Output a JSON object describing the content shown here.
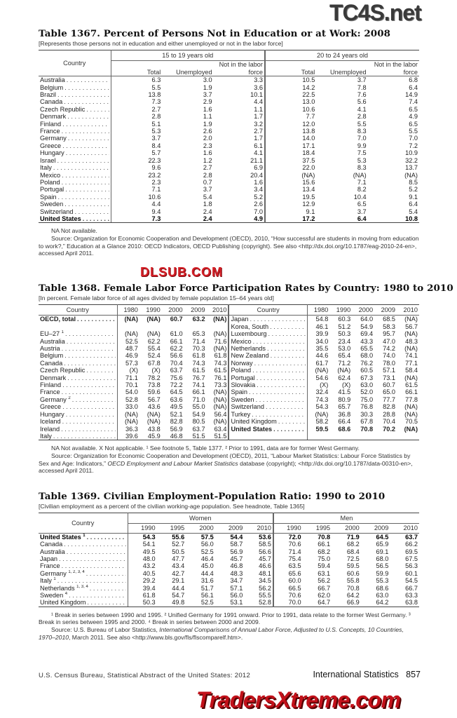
{
  "watermarks": {
    "top": "TC4S.net",
    "middle": "DLSUB.COM",
    "bottom": "TradersXtreme.com"
  },
  "t1367": {
    "title": "Table 1367. Percent of Persons Not in Education or at Work: 2008",
    "headnote": "[Represents those persons not in education and either unemployed or not in the labor force]",
    "col_country": "Country",
    "group1": "15 to 19 years old",
    "group2": "20 to 24 years old",
    "cols": [
      "Total",
      "Unemployed",
      "Not in the labor force",
      "Total",
      "Unemployed",
      "Not in the labor force"
    ],
    "rows": [
      {
        "country": "Australia",
        "v": [
          "6.3",
          "3.0",
          "3.3",
          "10.5",
          "3.7",
          "6.8"
        ]
      },
      {
        "country": "Belgium",
        "v": [
          "5.5",
          "1.9",
          "3.6",
          "14.2",
          "7.8",
          "6.4"
        ]
      },
      {
        "country": "Brazil",
        "v": [
          "13.8",
          "3.7",
          "10.1",
          "22.5",
          "7.6",
          "14.9"
        ]
      },
      {
        "country": "Canada",
        "v": [
          "7.3",
          "2.9",
          "4.4",
          "13.0",
          "5.6",
          "7.4"
        ]
      },
      {
        "country": "Czech Republic",
        "v": [
          "2.7",
          "1.6",
          "1.1",
          "10.6",
          "4.1",
          "6.5"
        ]
      },
      {
        "country": "Denmark",
        "v": [
          "2.8",
          "1.1",
          "1.7",
          "7.7",
          "2.8",
          "4.9"
        ]
      },
      {
        "country": "Finland",
        "v": [
          "5.1",
          "1.9",
          "3.2",
          "12.0",
          "5.5",
          "6.5"
        ]
      },
      {
        "country": "France",
        "v": [
          "5.3",
          "2.6",
          "2.7",
          "13.8",
          "8.3",
          "5.5"
        ]
      },
      {
        "country": "Germany",
        "v": [
          "3.7",
          "2.0",
          "1.7",
          "14.0",
          "7.0",
          "7.0"
        ]
      },
      {
        "country": "Greece",
        "v": [
          "8.4",
          "2.3",
          "6.1",
          "17.1",
          "9.9",
          "7.2"
        ]
      },
      {
        "country": "Hungary",
        "v": [
          "5.7",
          "1.6",
          "4.1",
          "18.4",
          "7.5",
          "10.9"
        ]
      },
      {
        "country": "Israel",
        "v": [
          "22.3",
          "1.2",
          "21.1",
          "37.5",
          "5.3",
          "32.2"
        ]
      },
      {
        "country": "Italy",
        "v": [
          "9.6",
          "2.7",
          "6.9",
          "22.0",
          "8.3",
          "13.7"
        ]
      },
      {
        "country": "Mexico",
        "v": [
          "23.2",
          "2.8",
          "20.4",
          "(NA)",
          "(NA)",
          "(NA)"
        ]
      },
      {
        "country": "Poland",
        "v": [
          "2.3",
          "0.7",
          "1.6",
          "15.6",
          "7.1",
          "8.5"
        ]
      },
      {
        "country": "Portugal",
        "v": [
          "7.1",
          "3.7",
          "3.4",
          "13.4",
          "8.2",
          "5.2"
        ]
      },
      {
        "country": "Spain",
        "v": [
          "10.6",
          "5.4",
          "5.2",
          "19.5",
          "10.4",
          "9.1"
        ]
      },
      {
        "country": "Sweden",
        "v": [
          "4.4",
          "1.8",
          "2.6",
          "12.9",
          "6.5",
          "6.4"
        ]
      },
      {
        "country": "Switzerland",
        "v": [
          "9.4",
          "2.4",
          "7.0",
          "9.1",
          "3.7",
          "5.4"
        ]
      },
      {
        "country": "United States",
        "bold": true,
        "v": [
          "7.3",
          "2.4",
          "4.9",
          "17.2",
          "6.4",
          "10.8"
        ]
      }
    ],
    "notes": [
      "NA Not available.",
      "Source: Organization for Economic Cooperation and Development (OECD), 2010, “How successful are students in moving from education to work?,” Education at a Glance 2010: OECD Indicators, OECD Publishing (copyright). See also <http://dx.doi.org/10.1787/eag-2010-24-en>, accessed April 2011."
    ]
  },
  "t1368": {
    "title": "Table 1368. Female Labor Force Participation Rates by Country: 1980 to 2010",
    "headnote": "[In percent. Female labor force of all ages divided by female population 15–64 years old]",
    "col_country": "Country",
    "years": [
      "1980",
      "1990",
      "2000",
      "2009",
      "2010"
    ],
    "left": [
      {
        "country": "OECD, total",
        "bold": true,
        "v": [
          "(NA)",
          "(NA)",
          "60.7",
          "63.2",
          "(NA)"
        ]
      },
      {
        "country": "",
        "v": [
          "",
          "",
          "",
          "",
          ""
        ]
      },
      {
        "country": "EU–27",
        "sup": "1",
        "v": [
          "(NA)",
          "(NA)",
          "61.0",
          "65.3",
          "(NA)"
        ]
      },
      {
        "country": "Australia",
        "v": [
          "52.5",
          "62.2",
          "66.1",
          "71.4",
          "71.6"
        ]
      },
      {
        "country": "Austria",
        "v": [
          "48.7",
          "55.4",
          "62.2",
          "70.3",
          "(NA)"
        ]
      },
      {
        "country": "Belgium",
        "v": [
          "46.9",
          "52.4",
          "56.6",
          "61.8",
          "61.8"
        ]
      },
      {
        "country": "Canada",
        "v": [
          "57.3",
          "67.8",
          "70.4",
          "74.3",
          "74.3"
        ]
      },
      {
        "country": "Czech Republic",
        "v": [
          "(X)",
          "(X)",
          "63.7",
          "61.5",
          "61.5"
        ]
      },
      {
        "country": "Denmark",
        "v": [
          "71.1",
          "78.2",
          "75.6",
          "76.7",
          "76.1"
        ]
      },
      {
        "country": "Finland",
        "v": [
          "70.1",
          "73.8",
          "72.2",
          "74.1",
          "73.3"
        ]
      },
      {
        "country": "France",
        "v": [
          "54.0",
          "59.6",
          "64.5",
          "66.1",
          "(NA)"
        ]
      },
      {
        "country": "Germany",
        "sup": "2",
        "v": [
          "52.8",
          "56.7",
          "63.6",
          "71.0",
          "(NA)"
        ]
      },
      {
        "country": "Greece",
        "v": [
          "33.0",
          "43.6",
          "49.5",
          "55.0",
          "(NA)"
        ]
      },
      {
        "country": "Hungary",
        "v": [
          "(NA)",
          "(NA)",
          "52.1",
          "54.9",
          "56.4"
        ]
      },
      {
        "country": "Iceland",
        "v": [
          "(NA)",
          "(NA)",
          "82.8",
          "80.5",
          "(NA)"
        ]
      },
      {
        "country": "Ireland",
        "v": [
          "36.3",
          "43.8",
          "56.9",
          "63.7",
          "63.4"
        ]
      },
      {
        "country": "Italy",
        "v": [
          "39.6",
          "45.9",
          "46.8",
          "51.5",
          "51.5"
        ]
      }
    ],
    "right": [
      {
        "country": "Japan",
        "v": [
          "54.8",
          "60.3",
          "64.0",
          "68.5",
          "(NA)"
        ]
      },
      {
        "country": "Korea, South",
        "v": [
          "46.1",
          "51.2",
          "54.9",
          "58.3",
          "56.7"
        ]
      },
      {
        "country": "Luxembourg",
        "v": [
          "39.9",
          "50.3",
          "69.4",
          "95.7",
          "(NA)"
        ]
      },
      {
        "country": "Mexico",
        "v": [
          "34.0",
          "23.4",
          "43.3",
          "47.0",
          "48.3"
        ]
      },
      {
        "country": "Netherlands",
        "v": [
          "35.5",
          "53.0",
          "65.5",
          "74.2",
          "(NA)"
        ]
      },
      {
        "country": "New Zealand",
        "v": [
          "44.6",
          "65.4",
          "68.0",
          "74.0",
          "74.1"
        ]
      },
      {
        "country": "Norway",
        "v": [
          "61.7",
          "71.2",
          "76.2",
          "78.0",
          "77.1"
        ]
      },
      {
        "country": "Poland",
        "v": [
          "(NA)",
          "(NA)",
          "60.5",
          "57.1",
          "58.4"
        ]
      },
      {
        "country": "Portugal",
        "v": [
          "54.6",
          "62.4",
          "67.3",
          "73.1",
          "(NA)"
        ]
      },
      {
        "country": "Slovakia",
        "v": [
          "(X)",
          "(X)",
          "63.0",
          "60.7",
          "61.5"
        ]
      },
      {
        "country": "Spain",
        "v": [
          "32.4",
          "41.5",
          "52.0",
          "65.0",
          "66.1"
        ]
      },
      {
        "country": "Sweden",
        "v": [
          "74.3",
          "80.9",
          "75.0",
          "77.7",
          "77.8"
        ]
      },
      {
        "country": "Switzerland",
        "v": [
          "54.3",
          "65.7",
          "76.8",
          "82.8",
          "(NA)"
        ]
      },
      {
        "country": "Turkey",
        "v": [
          "(NA)",
          "36.8",
          "30.3",
          "28.8",
          "(NA)"
        ]
      },
      {
        "country": "United Kingdom",
        "v": [
          "58.2",
          "66.4",
          "67.8",
          "70.4",
          "70.5"
        ]
      },
      {
        "country": "United States",
        "bold": true,
        "v": [
          "59.5",
          "68.6",
          "70.8",
          "70.2",
          "(NA)"
        ]
      },
      {
        "country": "",
        "v": [
          "",
          "",
          "",
          "",
          ""
        ]
      }
    ],
    "notes": [
      "NA Not available. X Not applicable. ¹ See footnote 5, Table 1377. ² Prior to 1991, data are for former West Germany.",
      "Source: Organization for Economic Cooperation and Development (OECD), 2011, “Labour Market Statistics: Labour Force Statistics by Sex and Age: Indicators,”",
      "OECD Employment and Labour Market Statistics",
      "database (copyright); <http://dx.doi.org/10.1787/data-00310-en>, accessed April 2011."
    ]
  },
  "t1369": {
    "title": "Table 1369. Civilian Employment-Population Ratio: 1990 to 2010",
    "headnote": "[Civilian employment as a percent of the civilian working-age population. See headnote, Table 1365]",
    "col_country": "Country",
    "group1": "Women",
    "group2": "Men",
    "years": [
      "1990",
      "1995",
      "2000",
      "2009",
      "2010",
      "1990",
      "1995",
      "2000",
      "2009",
      "2010"
    ],
    "rows": [
      {
        "country": "United States",
        "sup": "1",
        "bold": true,
        "v": [
          "54.3",
          "55.6",
          "57.5",
          "54.4",
          "53.6",
          "72.0",
          "70.8",
          "71.9",
          "64.5",
          "63.7"
        ]
      },
      {
        "country": "Canada",
        "v": [
          "54.1",
          "52.7",
          "56.0",
          "58.7",
          "58.5",
          "70.6",
          "66.1",
          "68.2",
          "65.9",
          "66.2"
        ]
      },
      {
        "country": "Australia",
        "v": [
          "49.5",
          "50.5",
          "52.5",
          "56.9",
          "56.6",
          "71.4",
          "68.2",
          "68.4",
          "69.1",
          "69.5"
        ]
      },
      {
        "country": "Japan",
        "v": [
          "48.0",
          "47.7",
          "46.4",
          "45.7",
          "45.7",
          "75.4",
          "75.0",
          "72.5",
          "68.0",
          "67.5"
        ]
      },
      {
        "country": "France",
        "v": [
          "43.2",
          "43.4",
          "45.0",
          "46.8",
          "46.6",
          "63.5",
          "59.4",
          "59.5",
          "56.5",
          "56.3"
        ]
      },
      {
        "country": "Germany",
        "sup": "1, 2, 3, 4",
        "v": [
          "40.5",
          "42.7",
          "44.4",
          "48.3",
          "48.1",
          "65.6",
          "63.1",
          "60.6",
          "59.9",
          "60.1"
        ]
      },
      {
        "country": "Italy",
        "sup": "1",
        "v": [
          "29.2",
          "29.1",
          "31.6",
          "34.7",
          "34.5",
          "60.0",
          "56.2",
          "55.8",
          "55.3",
          "54.5"
        ]
      },
      {
        "country": "Netherlands",
        "sup": "1, 3, 4",
        "v": [
          "39.4",
          "44.4",
          "51.7",
          "57.1",
          "56.2",
          "66.5",
          "66.7",
          "70.8",
          "68.6",
          "66.7"
        ]
      },
      {
        "country": "Sweden",
        "sup": "4",
        "v": [
          "61.8",
          "54.7",
          "56.1",
          "56.0",
          "55.5",
          "70.6",
          "62.0",
          "64.2",
          "63.0",
          "63.3"
        ]
      },
      {
        "country": "United Kingdom",
        "v": [
          "50.3",
          "49.8",
          "52.5",
          "53.1",
          "52.8",
          "70.0",
          "64.7",
          "66.9",
          "64.2",
          "63.8"
        ]
      }
    ],
    "notes": [
      "¹ Break in series between 1990 and 1995. ² Unified Germany for 1991 onward. Prior to 1991, data relate to the former West Germany. ³ Break in series between 1995 and 2000. ⁴ Break in series between 2000 and 2009.",
      "Source: U.S. Bureau of Labor Statistics,",
      "International Comparisons of Annual Labor Force, Adjusted to U.S. Concepts, 10 Countries, 1970–2010",
      ", March 2011. See also <http://www.bls.gov/fls/flscomparelf.htm>."
    ]
  },
  "footer": {
    "left": "U.S. Census Bureau, Statistical Abstract of the United States: 2012",
    "right": "International Statistics   857"
  }
}
